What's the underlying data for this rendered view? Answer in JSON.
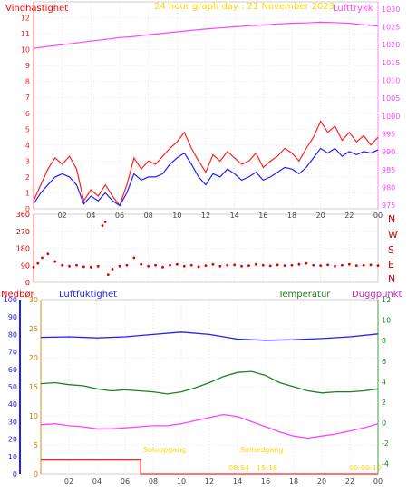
{
  "header": {
    "left_label": "Vindhastighet",
    "title": "24 hour graph day : 21 November 2023",
    "right_label": "Lufttrykk"
  },
  "lower_header": {
    "rain_label": "Nedbør",
    "humidity_label": "Luftfuktighet",
    "temp_label": "Temperatur",
    "dew_label": "Duggpunkt"
  },
  "compass_labels": [
    "N",
    "W",
    "S",
    "E",
    "N"
  ],
  "sun_labels": {
    "sunrise": "Soloppgang",
    "sunset": "Solnedgang",
    "sunrise_time": "08:54",
    "sunset_time": "15:16",
    "sun_label3": "00:00:10"
  },
  "colors": {
    "wind": "#ff2020",
    "gust_avg": "#2020ff",
    "pressure": "#ff44ff",
    "direction": "#dd0000",
    "humidity": "#2020ff",
    "temperature": "#208020",
    "dewpoint": "#ff44ff",
    "rain": "#ff2020",
    "sun_text": "#ffd700"
  },
  "chart_data": [
    {
      "type": "line",
      "panel": "wind_pressure",
      "x_ticks": [
        "02",
        "04",
        "06",
        "08",
        "10",
        "12",
        "14",
        "16",
        "18",
        "20",
        "22",
        "00"
      ],
      "x_range_hours": [
        0,
        24
      ],
      "y_left": {
        "label": "Vindhastighet",
        "ticks": [
          0,
          1,
          2,
          3,
          4,
          5,
          6,
          7,
          8,
          9,
          10,
          11,
          12
        ],
        "range": [
          0,
          13
        ]
      },
      "y_right": {
        "label": "Lufttrykk",
        "ticks": [
          975,
          980,
          985,
          990,
          995,
          1000,
          1005,
          1010,
          1015,
          1020,
          1025,
          1030
        ],
        "range": [
          974,
          1032
        ]
      },
      "series": [
        {
          "axis": "left",
          "color_key": "wind",
          "values": [
            [
              0,
              0.5
            ],
            [
              0.5,
              1.5
            ],
            [
              1,
              2.5
            ],
            [
              1.5,
              3.2
            ],
            [
              2,
              2.8
            ],
            [
              2.5,
              3.3
            ],
            [
              3,
              2.5
            ],
            [
              3.5,
              0.5
            ],
            [
              4,
              1.2
            ],
            [
              4.5,
              0.8
            ],
            [
              5,
              1.5
            ],
            [
              5.5,
              0.8
            ],
            [
              6,
              0.2
            ],
            [
              6.5,
              1.5
            ],
            [
              7,
              3.2
            ],
            [
              7.5,
              2.5
            ],
            [
              8,
              3.0
            ],
            [
              8.5,
              2.8
            ],
            [
              9,
              3.3
            ],
            [
              9.5,
              3.8
            ],
            [
              10,
              4.2
            ],
            [
              10.5,
              4.8
            ],
            [
              11,
              3.8
            ],
            [
              11.5,
              3.0
            ],
            [
              12,
              2.3
            ],
            [
              12.5,
              3.4
            ],
            [
              13,
              3.0
            ],
            [
              13.5,
              3.6
            ],
            [
              14,
              3.2
            ],
            [
              14.5,
              2.8
            ],
            [
              15,
              3.0
            ],
            [
              15.5,
              3.5
            ],
            [
              16,
              2.6
            ],
            [
              16.5,
              3.0
            ],
            [
              17,
              3.3
            ],
            [
              17.5,
              3.8
            ],
            [
              18,
              3.5
            ],
            [
              18.5,
              3.0
            ],
            [
              19,
              3.8
            ],
            [
              19.5,
              4.5
            ],
            [
              20,
              5.5
            ],
            [
              20.5,
              4.8
            ],
            [
              21,
              5.2
            ],
            [
              21.5,
              4.3
            ],
            [
              22,
              4.8
            ],
            [
              22.5,
              4.2
            ],
            [
              23,
              4.6
            ],
            [
              23.5,
              4.0
            ],
            [
              24,
              4.5
            ]
          ]
        },
        {
          "axis": "left",
          "color_key": "gust_avg",
          "values": [
            [
              0,
              0.3
            ],
            [
              0.5,
              1.0
            ],
            [
              1,
              1.5
            ],
            [
              1.5,
              2.0
            ],
            [
              2,
              2.2
            ],
            [
              2.5,
              2.0
            ],
            [
              3,
              1.5
            ],
            [
              3.5,
              0.3
            ],
            [
              4,
              0.8
            ],
            [
              4.5,
              0.5
            ],
            [
              5,
              1.0
            ],
            [
              5.5,
              0.5
            ],
            [
              6,
              0.2
            ],
            [
              6.5,
              1.0
            ],
            [
              7,
              2.2
            ],
            [
              7.5,
              1.8
            ],
            [
              8,
              2.0
            ],
            [
              8.5,
              2.0
            ],
            [
              9,
              2.2
            ],
            [
              9.5,
              2.8
            ],
            [
              10,
              3.2
            ],
            [
              10.5,
              3.5
            ],
            [
              11,
              2.8
            ],
            [
              11.5,
              2.0
            ],
            [
              12,
              1.5
            ],
            [
              12.5,
              2.2
            ],
            [
              13,
              2.0
            ],
            [
              13.5,
              2.5
            ],
            [
              14,
              2.2
            ],
            [
              14.5,
              1.8
            ],
            [
              15,
              2.0
            ],
            [
              15.5,
              2.3
            ],
            [
              16,
              1.8
            ],
            [
              16.5,
              2.0
            ],
            [
              17,
              2.3
            ],
            [
              17.5,
              2.6
            ],
            [
              18,
              2.5
            ],
            [
              18.5,
              2.2
            ],
            [
              19,
              2.6
            ],
            [
              19.5,
              3.2
            ],
            [
              20,
              3.8
            ],
            [
              20.5,
              3.5
            ],
            [
              21,
              3.8
            ],
            [
              21.5,
              3.3
            ],
            [
              22,
              3.6
            ],
            [
              22.5,
              3.4
            ],
            [
              23,
              3.6
            ],
            [
              23.5,
              3.5
            ],
            [
              24,
              3.7
            ]
          ]
        },
        {
          "axis": "right",
          "color_key": "pressure",
          "values": [
            [
              0,
              1019
            ],
            [
              1,
              1019.5
            ],
            [
              2,
              1020
            ],
            [
              3,
              1020.5
            ],
            [
              4,
              1021
            ],
            [
              5,
              1021.5
            ],
            [
              6,
              1022
            ],
            [
              7,
              1022.3
            ],
            [
              8,
              1022.8
            ],
            [
              9,
              1023.2
            ],
            [
              10,
              1023.6
            ],
            [
              11,
              1024.0
            ],
            [
              12,
              1024.4
            ],
            [
              13,
              1024.7
            ],
            [
              14,
              1025.0
            ],
            [
              15,
              1025.3
            ],
            [
              16,
              1025.5
            ],
            [
              17,
              1025.8
            ],
            [
              18,
              1026.0
            ],
            [
              19,
              1026.1
            ],
            [
              20,
              1026.3
            ],
            [
              21,
              1026.2
            ],
            [
              22,
              1026.0
            ],
            [
              23,
              1025.6
            ],
            [
              24,
              1025.2
            ]
          ]
        }
      ]
    },
    {
      "type": "scatter",
      "panel": "wind_direction",
      "y_ticks": [
        0,
        90,
        180,
        270,
        360
      ],
      "y_range": [
        0,
        360
      ],
      "x_range_hours": [
        0,
        24
      ],
      "values": [
        [
          0,
          80
        ],
        [
          0.3,
          100
        ],
        [
          0.6,
          130
        ],
        [
          1,
          150
        ],
        [
          1.5,
          110
        ],
        [
          2,
          90
        ],
        [
          2.5,
          85
        ],
        [
          3,
          90
        ],
        [
          3.5,
          82
        ],
        [
          4,
          80
        ],
        [
          4.5,
          85
        ],
        [
          4.8,
          300
        ],
        [
          5,
          320
        ],
        [
          5.2,
          40
        ],
        [
          5.5,
          70
        ],
        [
          6,
          85
        ],
        [
          6.5,
          90
        ],
        [
          7,
          130
        ],
        [
          7.5,
          95
        ],
        [
          8,
          85
        ],
        [
          8.5,
          90
        ],
        [
          9,
          80
        ],
        [
          9.5,
          90
        ],
        [
          10,
          95
        ],
        [
          10.5,
          85
        ],
        [
          11,
          90
        ],
        [
          11.5,
          82
        ],
        [
          12,
          88
        ],
        [
          12.5,
          95
        ],
        [
          13,
          85
        ],
        [
          13.5,
          90
        ],
        [
          14,
          92
        ],
        [
          14.5,
          85
        ],
        [
          15,
          88
        ],
        [
          15.5,
          95
        ],
        [
          16,
          90
        ],
        [
          16.5,
          87
        ],
        [
          17,
          92
        ],
        [
          17.5,
          88
        ],
        [
          18,
          90
        ],
        [
          18.5,
          95
        ],
        [
          19,
          100
        ],
        [
          19.5,
          90
        ],
        [
          20,
          88
        ],
        [
          20.5,
          92
        ],
        [
          21,
          85
        ],
        [
          21.5,
          90
        ],
        [
          22,
          95
        ],
        [
          22.5,
          88
        ],
        [
          23,
          90
        ],
        [
          23.5,
          92
        ],
        [
          24,
          88
        ]
      ]
    },
    {
      "type": "line",
      "panel": "humidity_temperature",
      "x_ticks": [
        "02",
        "04",
        "06",
        "08",
        "10",
        "12",
        "14",
        "16",
        "18",
        "20",
        "22",
        "00"
      ],
      "x_range_hours": [
        0,
        24
      ],
      "y_rain": {
        "label": "Nedbør",
        "ticks": [
          0,
          10,
          20,
          30,
          40,
          50,
          60,
          70,
          80,
          90,
          100
        ],
        "range": [
          0,
          100
        ]
      },
      "y_humidity": {
        "label": "Luftfuktighet",
        "ticks": [
          0,
          5,
          10,
          15,
          20,
          25,
          30
        ],
        "range": [
          0,
          30
        ]
      },
      "y_temperature": {
        "label": "Temperatur",
        "ticks": [
          -4,
          -2,
          0,
          2,
          4,
          6,
          8,
          10,
          12
        ],
        "range": [
          -5,
          12
        ]
      },
      "series": [
        {
          "axis": "humidity",
          "color_key": "humidity",
          "values": [
            [
              0,
              23.5
            ],
            [
              2,
              23.6
            ],
            [
              4,
              23.4
            ],
            [
              6,
              23.6
            ],
            [
              8,
              24.0
            ],
            [
              10,
              24.4
            ],
            [
              12,
              24.0
            ],
            [
              14,
              23.2
            ],
            [
              16,
              23.0
            ],
            [
              18,
              23.1
            ],
            [
              20,
              23.3
            ],
            [
              22,
              23.6
            ],
            [
              24,
              24.1
            ]
          ]
        },
        {
          "axis": "temperature",
          "color_key": "temperature",
          "values": [
            [
              0,
              3.8
            ],
            [
              1,
              3.9
            ],
            [
              2,
              3.7
            ],
            [
              3,
              3.6
            ],
            [
              4,
              3.3
            ],
            [
              5,
              3.1
            ],
            [
              6,
              3.2
            ],
            [
              7,
              3.1
            ],
            [
              8,
              3.0
            ],
            [
              9,
              2.8
            ],
            [
              10,
              3.0
            ],
            [
              11,
              3.4
            ],
            [
              12,
              3.9
            ],
            [
              13,
              4.5
            ],
            [
              14,
              4.9
            ],
            [
              15,
              5.0
            ],
            [
              16,
              4.6
            ],
            [
              17,
              3.9
            ],
            [
              18,
              3.5
            ],
            [
              19,
              3.1
            ],
            [
              20,
              2.9
            ],
            [
              21,
              3.0
            ],
            [
              22,
              3.0
            ],
            [
              23,
              3.1
            ],
            [
              24,
              3.3
            ]
          ]
        },
        {
          "axis": "temperature",
          "color_key": "dewpoint",
          "values": [
            [
              0,
              -0.2
            ],
            [
              1,
              -0.1
            ],
            [
              2,
              -0.3
            ],
            [
              3,
              -0.4
            ],
            [
              4,
              -0.6
            ],
            [
              5,
              -0.6
            ],
            [
              6,
              -0.5
            ],
            [
              7,
              -0.4
            ],
            [
              8,
              -0.3
            ],
            [
              9,
              -0.3
            ],
            [
              10,
              -0.1
            ],
            [
              11,
              0.2
            ],
            [
              12,
              0.5
            ],
            [
              13,
              0.8
            ],
            [
              14,
              0.6
            ],
            [
              15,
              0.1
            ],
            [
              16,
              -0.4
            ],
            [
              17,
              -0.9
            ],
            [
              18,
              -1.3
            ],
            [
              19,
              -1.5
            ],
            [
              20,
              -1.3
            ],
            [
              21,
              -1.1
            ],
            [
              22,
              -0.8
            ],
            [
              23,
              -0.5
            ],
            [
              24,
              -0.1
            ]
          ]
        },
        {
          "axis": "rain",
          "color_key": "rain",
          "values": [
            [
              0,
              8
            ],
            [
              7.1,
              8
            ],
            [
              7.1,
              0
            ],
            [
              24,
              0
            ]
          ]
        }
      ]
    }
  ]
}
